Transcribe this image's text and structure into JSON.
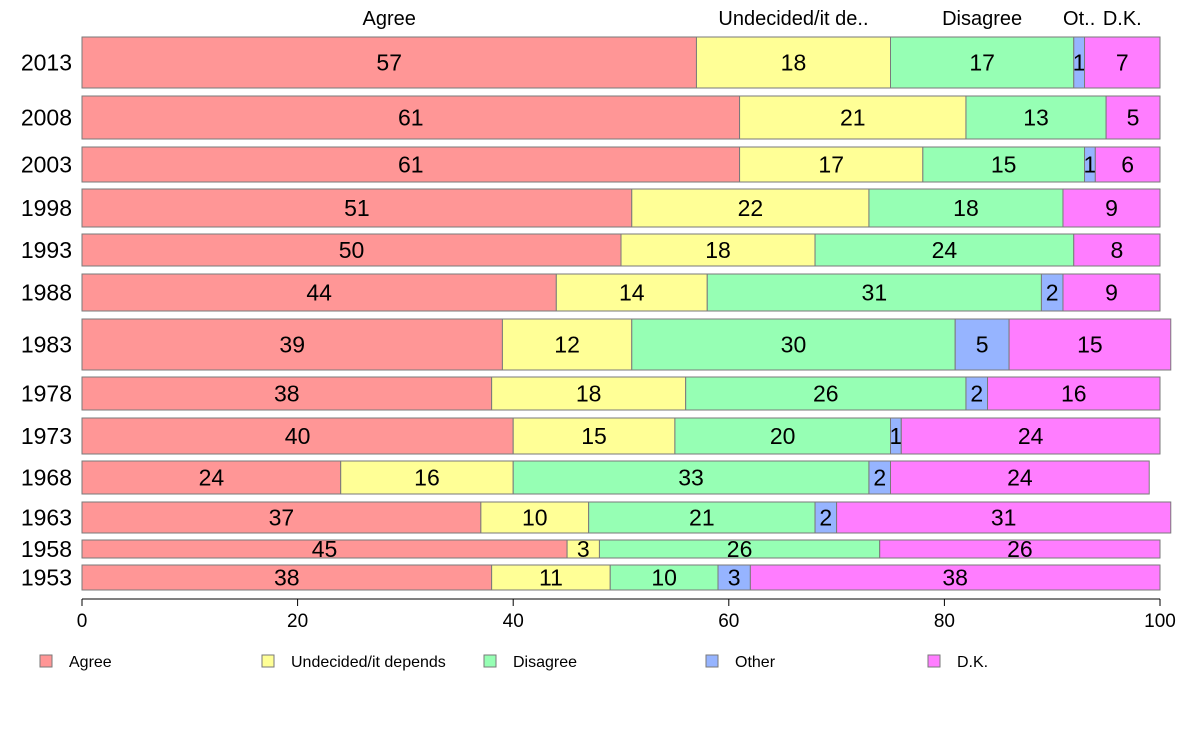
{
  "chart_data": {
    "type": "bar",
    "orientation": "horizontal",
    "stacked": true,
    "categories": [
      "2013",
      "2008",
      "2003",
      "1998",
      "1993",
      "1988",
      "1983",
      "1978",
      "1973",
      "1968",
      "1963",
      "1958",
      "1953"
    ],
    "column_headers": [
      "Agree",
      "Undecided/it de..",
      "Disagree",
      "Ot..",
      "D.K."
    ],
    "series": [
      {
        "name": "Agree",
        "color": "#ff9696",
        "values": [
          57,
          61,
          61,
          51,
          50,
          44,
          39,
          38,
          40,
          24,
          37,
          45,
          38
        ]
      },
      {
        "name": "Undecided/it depends",
        "color": "#ffff96",
        "values": [
          18,
          21,
          17,
          22,
          18,
          14,
          12,
          18,
          15,
          16,
          10,
          3,
          11
        ]
      },
      {
        "name": "Disagree",
        "color": "#96ffb4",
        "values": [
          17,
          13,
          15,
          18,
          24,
          31,
          30,
          26,
          20,
          33,
          21,
          26,
          10
        ]
      },
      {
        "name": "Other",
        "color": "#96b4ff",
        "values": [
          1,
          0,
          1,
          0,
          0,
          2,
          5,
          2,
          1,
          2,
          2,
          0,
          3
        ]
      },
      {
        "name": "D.K.",
        "color": "#ff7dff",
        "values": [
          7,
          5,
          6,
          9,
          8,
          9,
          15,
          16,
          24,
          24,
          31,
          26,
          38
        ]
      }
    ],
    "xlim": [
      0,
      100
    ],
    "xticks": [
      0,
      20,
      40,
      60,
      80,
      100
    ],
    "grid": false,
    "legend_position": "bottom"
  }
}
